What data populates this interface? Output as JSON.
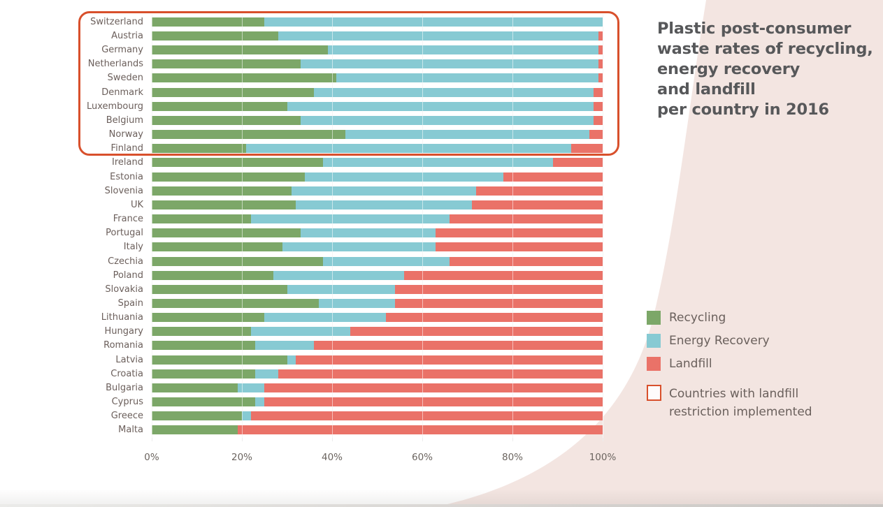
{
  "title": {
    "text": "Plastic post-consumer\nwaste rates of recycling,\nenergy recovery\nand landfill\nper country in 2016"
  },
  "axis": {
    "ticks": [
      "0%",
      "20%",
      "40%",
      "60%",
      "80%",
      "100%"
    ]
  },
  "legend": {
    "items": [
      {
        "label": "Recycling",
        "color": "#7ca768"
      },
      {
        "label": "Energy Recovery",
        "color": "#87cad3"
      },
      {
        "label": "Landfill",
        "color": "#ea7268"
      }
    ],
    "restriction_label": "Countries with landfill\nrestriction implemented",
    "restriction_border_color": "#d8502c"
  },
  "colors": {
    "recycling": "#7ca768",
    "energy_recovery": "#87cad3",
    "landfill": "#ea7268",
    "highlight_outline": "#d8502c",
    "background_blob": "#f3e5e1",
    "title_text": "#57585a",
    "label_text": "#6b5f5b"
  },
  "chart_data": {
    "type": "bar",
    "orientation": "horizontal",
    "stacked": true,
    "title": "Plastic post-consumer waste rates of recycling, energy recovery and landfill per country in 2016",
    "xlabel": "",
    "ylabel": "",
    "xlim": [
      0,
      100
    ],
    "x_tick_labels": [
      "0%",
      "20%",
      "40%",
      "60%",
      "80%",
      "100%"
    ],
    "grid": true,
    "legend_position": "right",
    "categories": [
      "Switzerland",
      "Austria",
      "Germany",
      "Netherlands",
      "Sweden",
      "Denmark",
      "Luxembourg",
      "Belgium",
      "Norway",
      "Finland",
      "Ireland",
      "Estonia",
      "Slovenia",
      "UK",
      "France",
      "Portugal",
      "Italy",
      "Czechia",
      "Poland",
      "Slovakia",
      "Spain",
      "Lithuania",
      "Hungary",
      "Romania",
      "Latvia",
      "Croatia",
      "Bulgaria",
      "Cyprus",
      "Greece",
      "Malta"
    ],
    "series": [
      {
        "name": "Recycling",
        "color": "#7ca768",
        "values": [
          25,
          28,
          39,
          33,
          41,
          36,
          30,
          33,
          43,
          21,
          38,
          34,
          31,
          32,
          22,
          33,
          29,
          38,
          27,
          30,
          37,
          25,
          22,
          23,
          30,
          23,
          19,
          23,
          20,
          19
        ]
      },
      {
        "name": "Energy Recovery",
        "color": "#87cad3",
        "values": [
          75,
          71,
          60,
          66,
          58,
          62,
          68,
          65,
          54,
          72,
          51,
          44,
          41,
          39,
          44,
          30,
          34,
          28,
          29,
          24,
          17,
          27,
          22,
          13,
          2,
          5,
          6,
          2,
          2,
          0
        ]
      },
      {
        "name": "Landfill",
        "color": "#ea7268",
        "values": [
          0,
          1,
          1,
          1,
          1,
          2,
          2,
          2,
          3,
          7,
          11,
          22,
          28,
          29,
          34,
          37,
          37,
          34,
          44,
          46,
          46,
          48,
          56,
          64,
          68,
          72,
          75,
          75,
          78,
          81
        ]
      }
    ],
    "highlight": {
      "label": "Countries with landfill restriction implemented",
      "countries": [
        "Switzerland",
        "Austria",
        "Germany",
        "Netherlands",
        "Sweden",
        "Denmark",
        "Luxembourg",
        "Belgium",
        "Norway",
        "Finland"
      ]
    }
  }
}
